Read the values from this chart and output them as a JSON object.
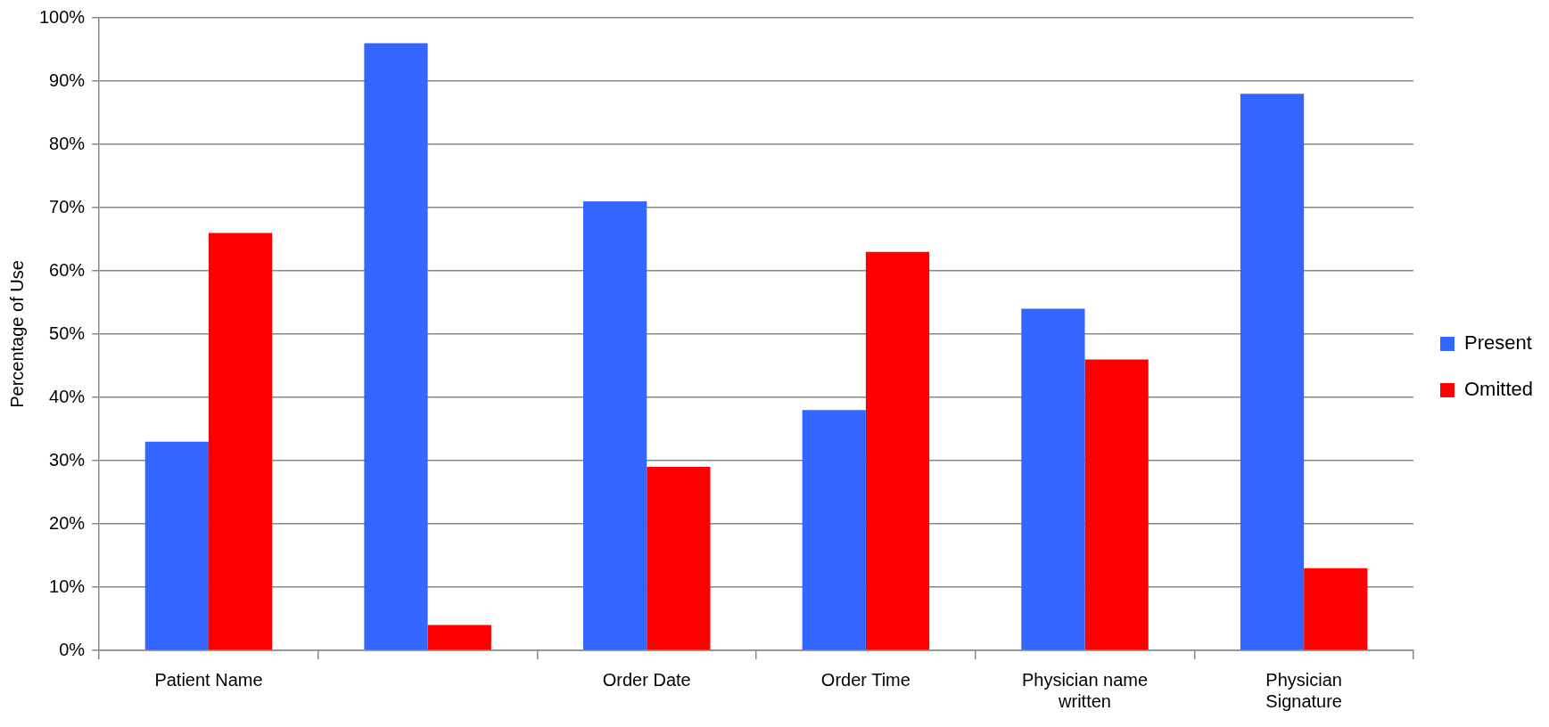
{
  "chart_data": {
    "type": "bar",
    "ylabel": "Percentage of Use",
    "categories": [
      "Patient Name",
      null,
      "Order Date",
      "Order Time",
      "Physician name written",
      "Physician Signature"
    ],
    "series": [
      {
        "name": "Present",
        "color": "#3366ff",
        "values": [
          33,
          96,
          71,
          38,
          54,
          88
        ]
      },
      {
        "name": "Omitted",
        "color": "#ff0000",
        "values": [
          66,
          4,
          29,
          63,
          46,
          13
        ]
      }
    ],
    "ylim": [
      0,
      100
    ],
    "yticks": [
      {
        "value": 0,
        "label": "0%"
      },
      {
        "value": 10,
        "label": "10%"
      },
      {
        "value": 20,
        "label": "20%"
      },
      {
        "value": 30,
        "label": "30%"
      },
      {
        "value": 40,
        "label": "40%"
      },
      {
        "value": 50,
        "label": "50%"
      },
      {
        "value": 60,
        "label": "60%"
      },
      {
        "value": 70,
        "label": "70%"
      },
      {
        "value": 80,
        "label": "80%"
      },
      {
        "value": 90,
        "label": "90%"
      },
      {
        "value": 100,
        "label": "100%"
      }
    ],
    "grid": "y",
    "legend": "right"
  }
}
